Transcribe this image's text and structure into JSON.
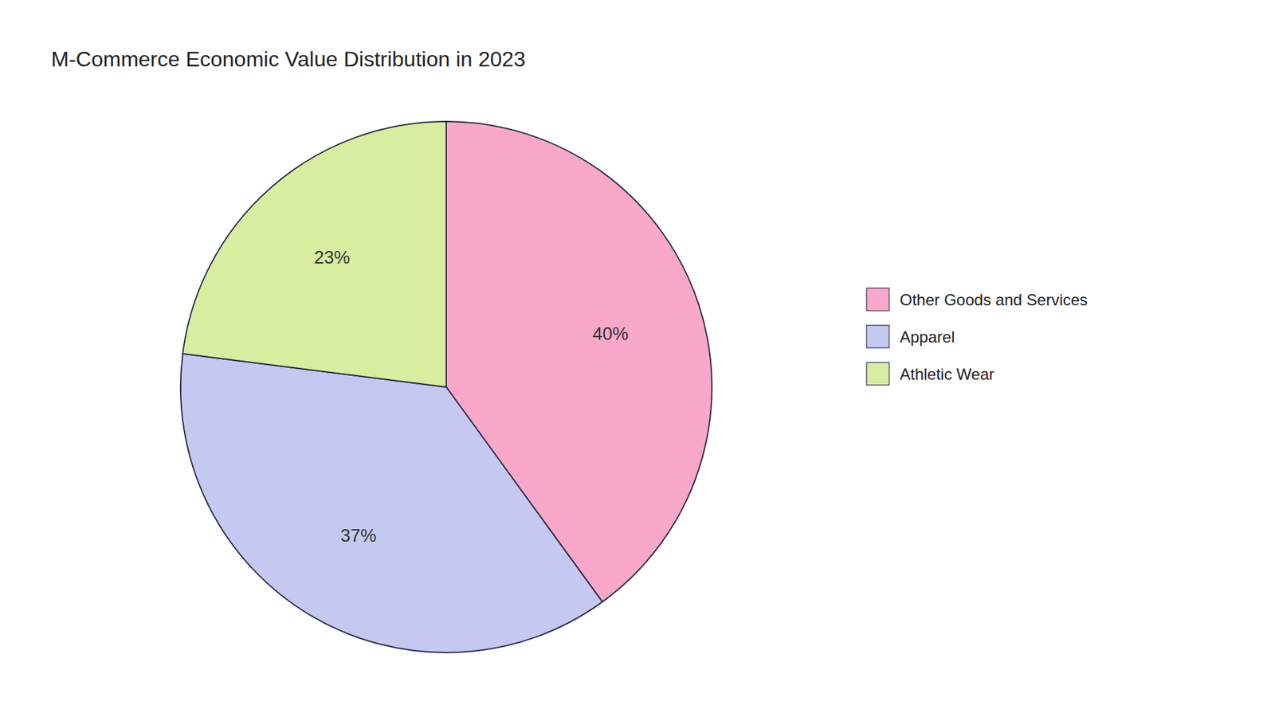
{
  "chart_data": {
    "type": "pie",
    "title": "M-Commerce Economic Value Distribution in 2023",
    "categories": [
      "Other Goods and Services",
      "Apparel",
      "Athletic Wear"
    ],
    "values": [
      40,
      37,
      23
    ],
    "value_labels": [
      "40%",
      "37%",
      "23%"
    ],
    "colors": [
      "#F9A8C9",
      "#C5C8F0",
      "#D8EDA0"
    ],
    "data_labels": true,
    "legend": "right"
  }
}
